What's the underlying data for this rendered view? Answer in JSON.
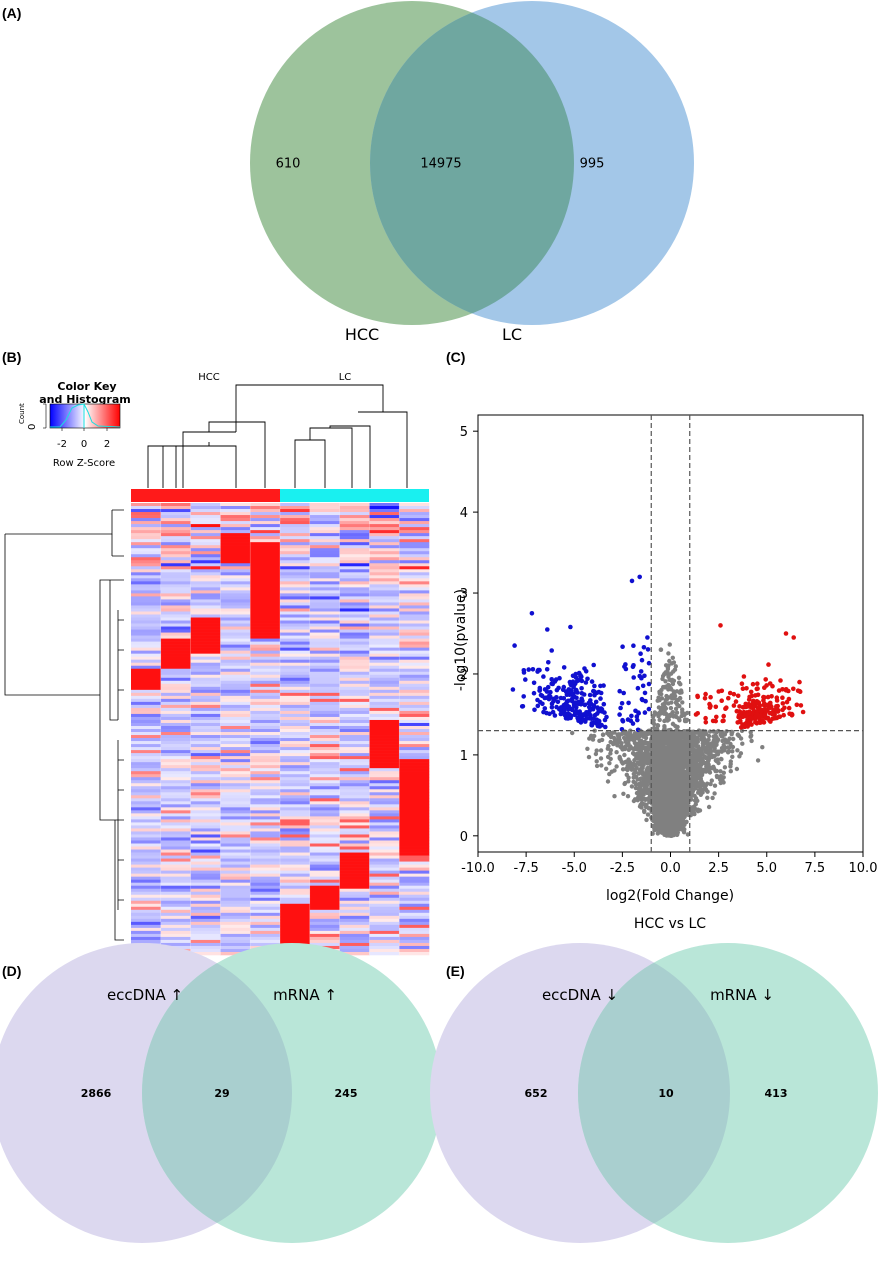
{
  "panels": {
    "A": {
      "label": "(A)",
      "sets": [
        {
          "name": "HCC",
          "color": "#9dc39c"
        },
        {
          "name": "LC",
          "color": "#a3c7e8"
        }
      ],
      "overlap_color": "#6fa7a0",
      "only_left": "610",
      "intersection": "14975",
      "only_right": "995"
    },
    "B": {
      "label": "(B)",
      "color_key_title_1": "Color Key",
      "color_key_title_2": "and Histogram",
      "count_label": "Count",
      "count_zero": "0",
      "key_ticks": [
        "-2",
        "0",
        "2"
      ],
      "key_xlabel": "Row Z-Score",
      "group_labels": [
        "HCC",
        "LC"
      ],
      "group_colors": {
        "HCC": "#ff1a1a",
        "LC": "#19f0f0"
      }
    },
    "C": {
      "label": "(C)",
      "subtitle": "HCC vs LC"
    },
    "D": {
      "label": "(D)",
      "sets": [
        {
          "name": "eccDNA ↑",
          "color": "#dcd8ef"
        },
        {
          "name": "mRNA ↑",
          "color": "#b9e6d8"
        }
      ],
      "overlap_color": "#a9cfcf",
      "only_left": "2866",
      "intersection": "29",
      "only_right": "245"
    },
    "E": {
      "label": "(E)",
      "sets": [
        {
          "name": "eccDNA ↓",
          "color": "#dcd8ef"
        },
        {
          "name": "mRNA ↓",
          "color": "#b9e6d8"
        }
      ],
      "overlap_color": "#a9cfcf",
      "only_left": "652",
      "intersection": "10",
      "only_right": "413"
    }
  },
  "chart_data": {
    "type": "scatter",
    "title": "",
    "subtitle": "HCC vs LC",
    "xlabel": "log2(Fold Change)",
    "ylabel": "-log10(pvalue)",
    "xlim": [
      -10,
      10
    ],
    "ylim": [
      -0.2,
      5.2
    ],
    "xticks": [
      "-10.0",
      "-7.5",
      "-5.0",
      "-2.5",
      "0.0",
      "2.5",
      "5.0",
      "7.5",
      "10.0"
    ],
    "xtick_values": [
      -10,
      -7.5,
      -5,
      -2.5,
      0,
      2.5,
      5,
      7.5,
      10
    ],
    "yticks": [
      "0",
      "1",
      "2",
      "3",
      "4",
      "5"
    ],
    "ytick_values": [
      0,
      1,
      2,
      3,
      4,
      5
    ],
    "fc_threshold": [
      -1,
      1
    ],
    "p_threshold": 1.3,
    "colors": {
      "down": "#1010d0",
      "up": "#e01010",
      "ns": "#808080"
    },
    "series": [
      {
        "name": "down",
        "count_approx": 300,
        "example_points": [
          [
            -8.1,
            2.35
          ],
          [
            -7.2,
            2.75
          ],
          [
            -6.4,
            2.55
          ],
          [
            -5.2,
            2.58
          ],
          [
            -2.0,
            3.15
          ],
          [
            -1.6,
            3.2
          ],
          [
            -1.2,
            2.45
          ],
          [
            -5.0,
            1.6
          ],
          [
            -4.0,
            1.45
          ]
        ]
      },
      {
        "name": "up",
        "count_approx": 280,
        "example_points": [
          [
            2.6,
            2.6
          ],
          [
            6.0,
            2.5
          ],
          [
            6.4,
            2.45
          ],
          [
            6.7,
            1.9
          ],
          [
            3.0,
            1.7
          ],
          [
            4.5,
            1.5
          ],
          [
            5.5,
            1.6
          ],
          [
            3.8,
            1.35
          ]
        ]
      },
      {
        "name": "ns",
        "count_approx": 8000,
        "example_points": [
          [
            0,
            0.02
          ],
          [
            -1.5,
            1.0
          ],
          [
            1.5,
            1.0
          ],
          [
            -3.5,
            1.25
          ],
          [
            3.5,
            1.25
          ],
          [
            -0.5,
            2.3
          ],
          [
            0.5,
            1.7
          ]
        ]
      }
    ]
  }
}
